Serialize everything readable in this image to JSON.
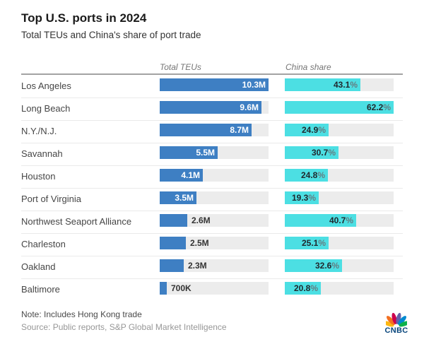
{
  "header": {
    "title": "Top U.S. ports in 2024",
    "subtitle": "Total TEUs and China's share of port trade"
  },
  "columns": [
    {
      "label": "Total TEUs"
    },
    {
      "label": "China share"
    }
  ],
  "chart_data": {
    "type": "bar",
    "orientation": "horizontal",
    "title": "Top U.S. ports in 2024",
    "subtitle": "Total TEUs and China's share of port trade",
    "grid": false,
    "legend": false,
    "categories": [
      "Los Angeles",
      "Long Beach",
      "N.Y./N.J.",
      "Savannah",
      "Houston",
      "Port of Virginia",
      "Northwest Seaport Alliance",
      "Charleston",
      "Oakland",
      "Baltimore"
    ],
    "series": [
      {
        "name": "Total TEUs",
        "unit": "TEUs (millions)",
        "values": [
          10.3,
          9.6,
          8.7,
          5.5,
          4.1,
          3.5,
          2.6,
          2.5,
          2.3,
          0.7
        ],
        "value_labels": [
          "10.3M",
          "9.6M",
          "8.7M",
          "5.5M",
          "4.1M",
          "3.5M",
          "2.6M",
          "2.5M",
          "2.3M",
          "700K"
        ],
        "axis_max": 10.3,
        "color": "#3e7fc3"
      },
      {
        "name": "China share",
        "unit": "%",
        "values": [
          43.1,
          62.2,
          24.9,
          30.7,
          24.8,
          19.3,
          40.7,
          25.1,
          32.6,
          20.8
        ],
        "value_labels": [
          "43.1%",
          "62.2%",
          "24.9%",
          "30.7%",
          "24.8%",
          "19.3%",
          "40.7%",
          "25.1%",
          "32.6%",
          "20.8%"
        ],
        "axis_max": 62.2,
        "color": "#4cdfe3"
      }
    ]
  },
  "footer": {
    "note": "Note: Includes Hong Kong trade",
    "source": "Source: Public reports, S&P Global Market Intelligence",
    "logo_text": "CNBC"
  },
  "colors": {
    "teu_bar": "#3e7fc3",
    "china_bar": "#4cdfe3",
    "bar_track": "#ececec",
    "teu_value_text": "#ffffff",
    "china_value_text": "#20282e"
  }
}
